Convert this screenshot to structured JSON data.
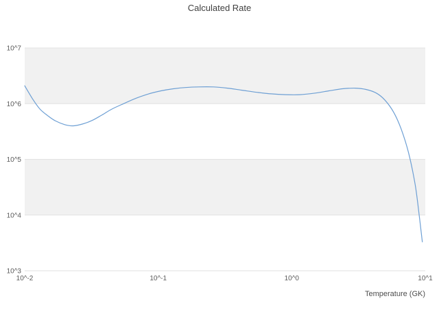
{
  "chart_data": {
    "type": "line",
    "title": "Calculated Rate",
    "xlabel": "Temperature (GK)",
    "ylabel": "",
    "x_scale": "log",
    "y_scale": "log",
    "xlim": [
      0.01,
      10
    ],
    "ylim": [
      1000,
      10000000
    ],
    "x_ticks": [
      {
        "label": "10^-2",
        "value": 0.01
      },
      {
        "label": "10^-1",
        "value": 0.1
      },
      {
        "label": "10^0",
        "value": 1
      },
      {
        "label": "10^1",
        "value": 10
      }
    ],
    "y_ticks": [
      {
        "label": "10^3",
        "value": 1000
      },
      {
        "label": "10^4",
        "value": 10000
      },
      {
        "label": "10^5",
        "value": 100000
      },
      {
        "label": "10^6",
        "value": 1000000
      },
      {
        "label": "10^7",
        "value": 10000000
      }
    ],
    "grid": true,
    "legend": false,
    "band_color": "#f1f1f1",
    "grid_color": "#e2e2e2",
    "line_color": "#6d9fd4",
    "series": [
      {
        "name": "Calculated Rate",
        "x": [
          0.01,
          0.0115,
          0.013,
          0.015,
          0.017,
          0.02,
          0.023,
          0.027,
          0.032,
          0.038,
          0.045,
          0.055,
          0.068,
          0.085,
          0.105,
          0.13,
          0.16,
          0.2,
          0.26,
          0.33,
          0.42,
          0.55,
          0.7,
          0.9,
          1.15,
          1.5,
          1.9,
          2.4,
          3.0,
          3.6,
          4.3,
          5.0,
          5.8,
          6.6,
          7.5,
          8.4,
          9.0,
          9.5
        ],
        "y": [
          2100000,
          1200000,
          800000,
          600000,
          490000,
          420000,
          400000,
          430000,
          500000,
          630000,
          800000,
          1000000,
          1250000,
          1500000,
          1700000,
          1850000,
          1950000,
          2000000,
          2000000,
          1900000,
          1750000,
          1600000,
          1500000,
          1450000,
          1450000,
          1550000,
          1700000,
          1850000,
          1900000,
          1800000,
          1550000,
          1150000,
          700000,
          350000,
          130000,
          35000,
          10000,
          3300
        ]
      }
    ]
  }
}
